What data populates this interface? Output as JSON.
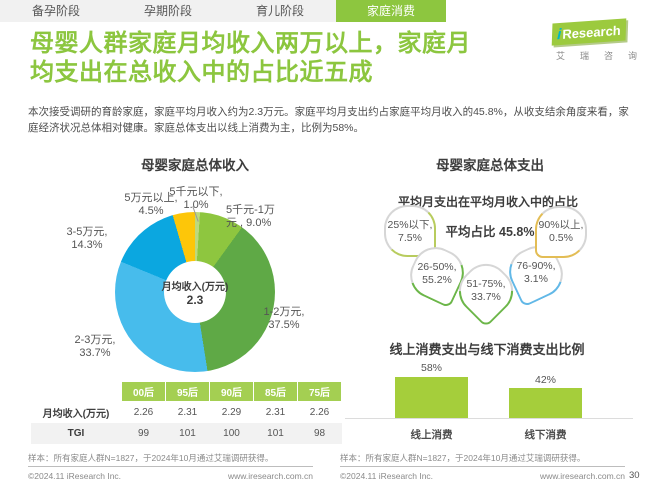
{
  "tabs": [
    {
      "label": "备孕阶段",
      "active": false
    },
    {
      "label": "孕期阶段",
      "active": false
    },
    {
      "label": "育儿阶段",
      "active": false
    },
    {
      "label": "家庭消费",
      "active": true
    }
  ],
  "logo": {
    "i": "i",
    "brand": "Research",
    "subtext": "艾瑞咨询"
  },
  "title": {
    "line1": "母婴人群家庭月均收入两万以上，家庭月",
    "line2": "均支出在总收入中的占比近五成"
  },
  "intro": {
    "line1": "本次接受调研的育龄家庭，家庭平均月收入约为2.3万元。家庭平均月支出约占家庭平均月收入的45.8%，从收支结余角度来看，家",
    "line2": "庭经济状况总体相对健康。家庭总体支出以线上消费为主，比例为58%。"
  },
  "colors": {
    "accent_green": "#8dc63f",
    "table_header_green": "#a4cf52",
    "bar_green": "#a5ce3b"
  },
  "chart_data": [
    {
      "type": "pie",
      "donut": true,
      "title": "母婴家庭总体收入",
      "center_label": "月均收入(万元)",
      "center_value": "2.3",
      "start_angle_deg": 0,
      "direction": "clockwise",
      "segments": [
        {
          "name": "5千元以下",
          "value": 1.0,
          "color": "#bcd97d",
          "label_line1": "5千元以下,",
          "label_line2": "1.0%"
        },
        {
          "name": "5千元-1万元",
          "value": 9.0,
          "color": "#8ec63f",
          "label_line1": "5千元-1万",
          "label_line2": "元 , 9.0%"
        },
        {
          "name": "1-2万元",
          "value": 37.5,
          "color": "#5fa946",
          "label_line1": "1-2万元,",
          "label_line2": "37.5%"
        },
        {
          "name": "2-3万元",
          "value": 33.7,
          "color": "#47bcec",
          "label_line1": "2-3万元,",
          "label_line2": "33.7%"
        },
        {
          "name": "3-5万元",
          "value": 14.3,
          "color": "#0ba7e0",
          "label_line1": "3-5万元,",
          "label_line2": "14.3%"
        },
        {
          "name": "5万元以上",
          "value": 4.5,
          "color": "#fdc609",
          "label_line1": "5万元以上,",
          "label_line2": "4.5%"
        }
      ]
    },
    {
      "type": "rose",
      "title": "母婴家庭总体支出",
      "subtitle": "平均月支出在平均月收入中的占比",
      "average_label": "平均占比 45.8%",
      "average_value": 45.8,
      "segments": [
        {
          "name": "25%以下",
          "value": 7.5,
          "color": "#b8cc5e",
          "label_line1": "25%以下,",
          "label_line2": "7.5%"
        },
        {
          "name": "26-50%",
          "value": 55.2,
          "color": "#6cb649",
          "label_line1": "26-50%,",
          "label_line2": "55.2%"
        },
        {
          "name": "51-75%",
          "value": 33.7,
          "color": "#6cb649",
          "label_line1": "51-75%,",
          "label_line2": "33.7%"
        },
        {
          "name": "76-90%",
          "value": 3.1,
          "color": "#62b8e7",
          "label_line1": "76-90%,",
          "label_line2": "3.1%"
        },
        {
          "name": "90%以上",
          "value": 0.5,
          "color": "#e3bd55",
          "label_line1": "90%以上,",
          "label_line2": "0.5%"
        }
      ]
    },
    {
      "type": "bar",
      "title": "线上消费支出与线下消费支出比例",
      "categories": [
        "线上消费",
        "线下消费"
      ],
      "values": [
        58,
        42
      ],
      "value_labels": [
        "58%",
        "42%"
      ],
      "bar_color": "#a5ce3b",
      "ylim": [
        0,
        100
      ]
    },
    {
      "type": "table",
      "headers": [
        "",
        "00后",
        "95后",
        "90后",
        "85后",
        "75后"
      ],
      "rows": [
        {
          "label": "月均收入(万元)",
          "values": [
            "2.26",
            "2.31",
            "2.29",
            "2.31",
            "2.26"
          ]
        },
        {
          "label": "TGI",
          "values": [
            "99",
            "101",
            "100",
            "101",
            "98"
          ]
        }
      ]
    }
  ],
  "footer": {
    "note": "样本：所有家庭人群N=1827，于2024年10月通过艾瑞调研获得。",
    "copyright": "©2024.11 iResearch Inc.",
    "website": "www.iresearch.com.cn",
    "page_number": "30"
  }
}
